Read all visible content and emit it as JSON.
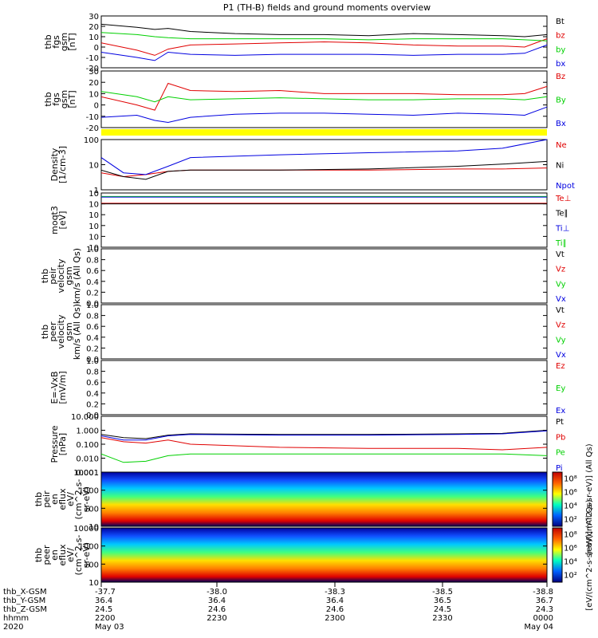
{
  "title": "P1 (TH-B) fields and ground moments overview",
  "colors": {
    "black": "#000000",
    "red": "#e00000",
    "green": "#00d000",
    "blue": "#0000e0",
    "yellow": "#ffff00"
  },
  "chart_data": [
    {
      "type": "line",
      "panel": "fgs_gsm",
      "ylabel": [
        "thb",
        "fgs",
        "gsm",
        "[nT]"
      ],
      "ylim": [
        -20,
        30
      ],
      "yticks": [
        "30",
        "20",
        "10",
        "0",
        "-10",
        "-20"
      ],
      "legend": [
        {
          "name": "Bt",
          "color": "black"
        },
        {
          "name": "bz",
          "color": "red"
        },
        {
          "name": "by",
          "color": "green"
        },
        {
          "name": "bx",
          "color": "blue"
        }
      ],
      "series": [
        {
          "name": "Bt",
          "color": "black",
          "x": [
            0,
            0.08,
            0.12,
            0.15,
            0.2,
            0.3,
            0.4,
            0.5,
            0.6,
            0.7,
            0.8,
            0.9,
            0.95,
            1
          ],
          "y": [
            22,
            19,
            17,
            18,
            15,
            13,
            12,
            12,
            11,
            13,
            12,
            11,
            10,
            12
          ]
        },
        {
          "name": "bz",
          "color": "red",
          "x": [
            0,
            0.08,
            0.12,
            0.15,
            0.2,
            0.3,
            0.4,
            0.5,
            0.6,
            0.7,
            0.8,
            0.9,
            0.95,
            1
          ],
          "y": [
            4,
            -3,
            -8,
            -2,
            2,
            3,
            4,
            5,
            4,
            2,
            1,
            1,
            0,
            8
          ]
        },
        {
          "name": "by",
          "color": "green",
          "x": [
            0,
            0.08,
            0.12,
            0.15,
            0.2,
            0.3,
            0.4,
            0.5,
            0.6,
            0.7,
            0.8,
            0.9,
            0.95,
            1
          ],
          "y": [
            14,
            12,
            10,
            9,
            8,
            8,
            8,
            8,
            7,
            8,
            8,
            8,
            7,
            6
          ]
        },
        {
          "name": "bx",
          "color": "blue",
          "x": [
            0,
            0.08,
            0.12,
            0.15,
            0.2,
            0.3,
            0.4,
            0.5,
            0.6,
            0.7,
            0.8,
            0.9,
            0.95,
            1
          ],
          "y": [
            -5,
            -10,
            -13,
            -5,
            -7,
            -8,
            -7,
            -7,
            -7,
            -8,
            -7,
            -7,
            -6,
            2
          ]
        }
      ]
    },
    {
      "type": "line",
      "panel": "fgs_gsm_components",
      "ylabel": [
        "thb",
        "fgs",
        "gsm",
        "[nT]"
      ],
      "ylim": [
        -25,
        30
      ],
      "yticks": [
        "30",
        "20",
        "10",
        "0",
        "-10",
        "-20"
      ],
      "legend": [
        {
          "name": "Bz",
          "color": "red"
        },
        {
          "name": "By",
          "color": "green"
        },
        {
          "name": "Bx",
          "color": "blue"
        }
      ],
      "series": [
        {
          "name": "Bz",
          "color": "red",
          "x": [
            0,
            0.08,
            0.12,
            0.15,
            0.2,
            0.3,
            0.4,
            0.5,
            0.6,
            0.7,
            0.8,
            0.9,
            0.95,
            1
          ],
          "y": [
            5,
            -3,
            -8,
            18,
            11,
            10,
            11,
            8,
            8,
            8,
            7,
            7,
            8,
            15
          ]
        },
        {
          "name": "By",
          "color": "green",
          "x": [
            0,
            0.08,
            0.12,
            0.15,
            0.2,
            0.3,
            0.4,
            0.5,
            0.6,
            0.7,
            0.8,
            0.9,
            0.95,
            1
          ],
          "y": [
            10,
            5,
            0,
            5,
            2,
            3,
            4,
            3,
            2,
            2,
            3,
            3,
            2,
            5
          ]
        },
        {
          "name": "Bx",
          "color": "blue",
          "x": [
            0,
            0.08,
            0.12,
            0.15,
            0.2,
            0.3,
            0.4,
            0.5,
            0.6,
            0.7,
            0.8,
            0.9,
            0.95,
            1
          ],
          "y": [
            -15,
            -13,
            -18,
            -20,
            -15,
            -12,
            -11,
            -11,
            -12,
            -13,
            -11,
            -12,
            -13,
            -5
          ]
        }
      ]
    },
    {
      "type": "line",
      "panel": "density",
      "ylabel": [
        "Density",
        "[1/cm-3]"
      ],
      "ylim": [
        1,
        200
      ],
      "yscale": "log",
      "yticks": [
        "100",
        "10",
        "1"
      ],
      "legend": [
        {
          "name": "Ne",
          "color": "red"
        },
        {
          "name": "Ni",
          "color": "black"
        },
        {
          "name": "Npot",
          "color": "blue"
        }
      ],
      "series": [
        {
          "name": "Ne",
          "color": "red",
          "x": [
            0,
            0.05,
            0.1,
            0.15,
            0.2,
            0.4,
            0.6,
            0.8,
            0.9,
            1
          ],
          "y": [
            6,
            4,
            5,
            7,
            8,
            8,
            8,
            9,
            9,
            10
          ]
        },
        {
          "name": "Ni",
          "color": "black",
          "x": [
            0,
            0.05,
            0.1,
            0.15,
            0.2,
            0.4,
            0.6,
            0.8,
            0.9,
            1
          ],
          "y": [
            8,
            4,
            3,
            7,
            8,
            8,
            9,
            12,
            15,
            20
          ]
        },
        {
          "name": "Npot",
          "color": "blue",
          "x": [
            0,
            0.05,
            0.1,
            0.15,
            0.2,
            0.4,
            0.6,
            0.8,
            0.9,
            1
          ],
          "y": [
            30,
            6,
            5,
            12,
            30,
            40,
            50,
            60,
            80,
            200
          ]
        }
      ]
    },
    {
      "type": "line",
      "panel": "temperature",
      "ylabel": [
        "moqt3",
        "[eV]"
      ],
      "ylim": [
        0.0001,
        10000
      ],
      "yscale": "log",
      "yticks": [
        "10",
        "10",
        "10",
        "10",
        "10",
        "10"
      ],
      "legend": [
        {
          "name": "Te⊥",
          "color": "red"
        },
        {
          "name": "Te∥",
          "color": "black"
        },
        {
          "name": "Ti⊥",
          "color": "blue"
        },
        {
          "name": "Ti∥",
          "color": "green"
        }
      ],
      "series": [
        {
          "name": "Ti∥",
          "color": "green",
          "x": [
            0,
            1
          ],
          "y": [
            3000,
            3000
          ]
        },
        {
          "name": "Ti⊥",
          "color": "blue",
          "x": [
            0,
            1
          ],
          "y": [
            2500,
            2500
          ]
        },
        {
          "name": "Te⊥",
          "color": "red",
          "x": [
            0,
            1
          ],
          "y": [
            300,
            300
          ]
        },
        {
          "name": "Te∥",
          "color": "black",
          "x": [
            0,
            1
          ],
          "y": [
            250,
            250
          ]
        }
      ]
    },
    {
      "type": "line",
      "panel": "peir_velocity",
      "ylabel": [
        "thb",
        "peir",
        "velocity",
        "gsm",
        "km/s (All Qs)"
      ],
      "ylim": [
        0,
        1
      ],
      "yticks": [
        "1.0",
        "0.8",
        "0.6",
        "0.4",
        "0.2",
        "0.0"
      ],
      "legend": [
        {
          "name": "Vt",
          "color": "black"
        },
        {
          "name": "Vz",
          "color": "red"
        },
        {
          "name": "Vy",
          "color": "green"
        },
        {
          "name": "Vx",
          "color": "blue"
        }
      ],
      "series": []
    },
    {
      "type": "line",
      "panel": "peer_velocity",
      "ylabel": [
        "thb",
        "peer",
        "velocity",
        "gsm",
        "km/s (All Qs)"
      ],
      "ylim": [
        0,
        1
      ],
      "yticks": [
        "1.0",
        "0.8",
        "0.6",
        "0.4",
        "0.2",
        "0.0"
      ],
      "legend": [
        {
          "name": "Vt",
          "color": "black"
        },
        {
          "name": "Vz",
          "color": "red"
        },
        {
          "name": "Vy",
          "color": "green"
        },
        {
          "name": "Vx",
          "color": "blue"
        }
      ],
      "series": []
    },
    {
      "type": "line",
      "panel": "efield",
      "ylabel": [
        "E=-VxB",
        "[mV/m]"
      ],
      "ylim": [
        0,
        1
      ],
      "yticks": [
        "1.0",
        "0.8",
        "0.6",
        "0.4",
        "0.2",
        "0.0"
      ],
      "legend": [
        {
          "name": "Ez",
          "color": "red"
        },
        {
          "name": "Ey",
          "color": "green"
        },
        {
          "name": "Ex",
          "color": "blue"
        }
      ],
      "series": []
    },
    {
      "type": "line",
      "panel": "pressure",
      "ylabel": [
        "Pressure",
        "[nPa]"
      ],
      "ylim": [
        0.001,
        10
      ],
      "yscale": "log",
      "yticks": [
        "10.000",
        "1.000",
        "0.100",
        "0.010",
        "0.001"
      ],
      "legend": [
        {
          "name": "Pt",
          "color": "black"
        },
        {
          "name": "Pb",
          "color": "red"
        },
        {
          "name": "Pe",
          "color": "green"
        },
        {
          "name": "Pi",
          "color": "blue"
        }
      ],
      "series": [
        {
          "name": "Pt",
          "color": "black",
          "x": [
            0,
            0.05,
            0.1,
            0.15,
            0.2,
            0.4,
            0.6,
            0.8,
            0.9,
            1
          ],
          "y": [
            0.5,
            0.3,
            0.25,
            0.45,
            0.55,
            0.5,
            0.5,
            0.55,
            0.6,
            1.0
          ]
        },
        {
          "name": "Pi",
          "color": "blue",
          "x": [
            0,
            0.05,
            0.1,
            0.15,
            0.2,
            0.4,
            0.6,
            0.8,
            0.9,
            1
          ],
          "y": [
            0.4,
            0.2,
            0.2,
            0.4,
            0.5,
            0.45,
            0.45,
            0.5,
            0.55,
            0.9
          ]
        },
        {
          "name": "Pb",
          "color": "red",
          "x": [
            0,
            0.05,
            0.1,
            0.15,
            0.2,
            0.4,
            0.6,
            0.8,
            0.9,
            1
          ],
          "y": [
            0.3,
            0.15,
            0.12,
            0.2,
            0.1,
            0.06,
            0.05,
            0.05,
            0.04,
            0.06
          ]
        },
        {
          "name": "Pe",
          "color": "green",
          "x": [
            0,
            0.05,
            0.1,
            0.15,
            0.2,
            0.4,
            0.6,
            0.8,
            0.9,
            1
          ],
          "y": [
            0.02,
            0.005,
            0.006,
            0.015,
            0.02,
            0.02,
            0.02,
            0.02,
            0.02,
            0.015
          ]
        }
      ]
    },
    {
      "type": "heatmap",
      "panel": "peir_eflux",
      "ylabel": [
        "thb",
        "peir",
        "en",
        "eflux",
        "eV/",
        "(cm^2-s-",
        "sr-eV)"
      ],
      "ylim": [
        5,
        10001
      ],
      "yscale": "log",
      "yticks": [
        "10001",
        "1000",
        "100",
        "10"
      ],
      "colorbar": {
        "label": "[eV/(cm^2-s-sr-eV)] (All Qs)",
        "ticks": [
          "10⁸",
          "10⁶",
          "10⁴",
          "10²"
        ]
      }
    },
    {
      "type": "heatmap",
      "panel": "peer_eflux",
      "ylabel": [
        "thb",
        "peer",
        "en",
        "eflux",
        "eV/",
        "(cm^2-s-",
        "sr-eV)"
      ],
      "ylim": [
        5,
        10000
      ],
      "yscale": "log",
      "yticks": [
        "10000",
        "1000",
        "100",
        "10"
      ],
      "colorbar": {
        "label": "[eV/(cm^2-s-sr-eV)] (All Qs)",
        "ticks": [
          "10⁸",
          "10⁶",
          "10⁴",
          "10²"
        ]
      }
    }
  ],
  "axis": {
    "rows": [
      {
        "label": "thb_X-GSM",
        "values": [
          "-37.7",
          "-38.0",
          "-38.3",
          "-38.5",
          "-38.8"
        ]
      },
      {
        "label": "thb_Y-GSM",
        "values": [
          "36.4",
          "36.4",
          "36.4",
          "36.5",
          "36.7"
        ]
      },
      {
        "label": "thb_Z-GSM",
        "values": [
          "24.5",
          "24.6",
          "24.6",
          "24.5",
          "24.3"
        ]
      },
      {
        "label": "hhmm",
        "values": [
          "2200",
          "2230",
          "2300",
          "2330",
          "0000"
        ]
      },
      {
        "label": "2020",
        "values": [
          "May 03",
          "",
          "",
          "",
          "May 04"
        ]
      }
    ]
  }
}
